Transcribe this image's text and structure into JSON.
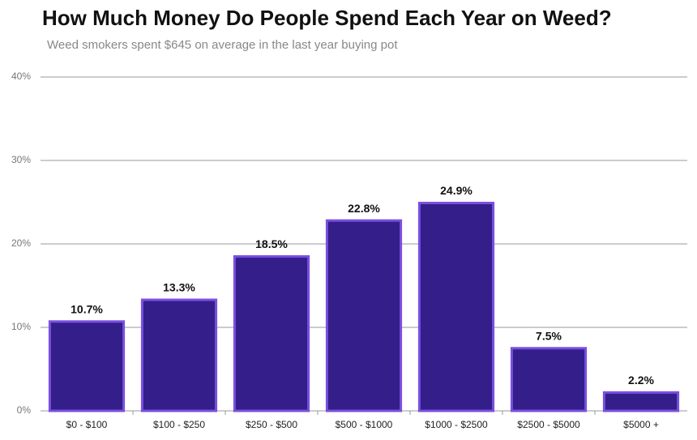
{
  "chart_data": {
    "type": "bar",
    "title": "How Much Money Do People Spend Each Year on Weed?",
    "subtitle": "Weed smokers spent $645 on average in the last year buying pot",
    "categories": [
      "$0 - $100",
      "$100 - $250",
      "$250 - $500",
      "$500 - $1000",
      "$1000 - $2500",
      "$2500 - $5000",
      "$5000 +"
    ],
    "values": [
      10.7,
      13.3,
      18.5,
      22.8,
      24.9,
      7.5,
      2.2
    ],
    "value_labels": [
      "10.7%",
      "13.3%",
      "18.5%",
      "22.8%",
      "24.9%",
      "7.5%",
      "2.2%"
    ],
    "color": "#331e8a",
    "ylim": [
      0,
      40
    ],
    "yticks": [
      {
        "value": 0,
        "label": "0%"
      },
      {
        "value": 10,
        "label": "10%"
      },
      {
        "value": 20,
        "label": "20%"
      },
      {
        "value": 30,
        "label": "30%"
      },
      {
        "value": 40,
        "label": "40%"
      }
    ],
    "grid": true
  }
}
